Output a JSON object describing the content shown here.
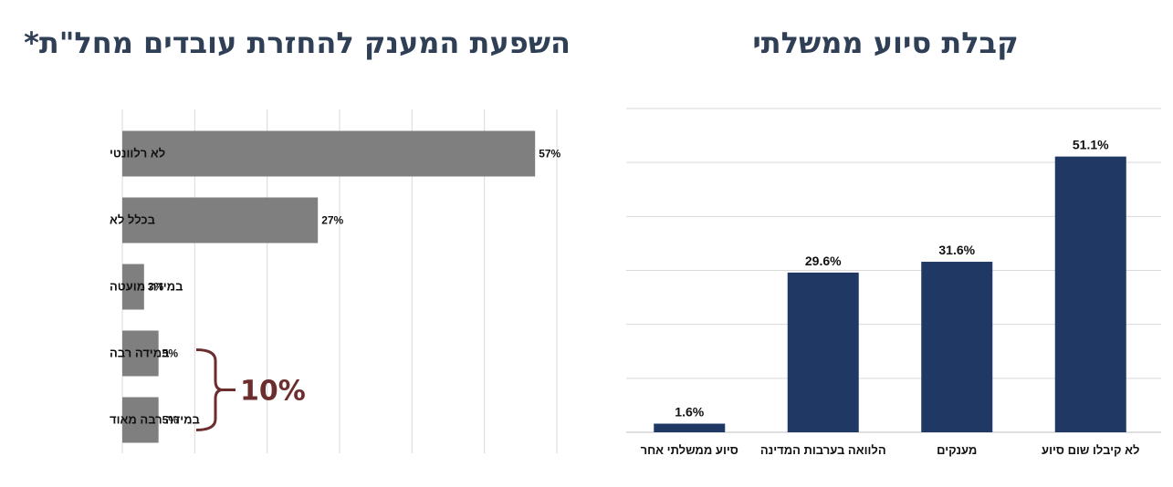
{
  "chart_data": [
    {
      "type": "bar",
      "orientation": "horizontal",
      "title": "השפעת המענק להחזרת עובדים מחל\"ת*",
      "categories": [
        "לא רלוונטי",
        "בכלל לא",
        "במידה מועטה",
        "במידה רבה",
        "במידה רבה מאוד"
      ],
      "values": [
        57,
        27,
        3,
        5,
        5
      ],
      "value_labels": [
        "57%",
        "27%",
        "3%",
        "5%",
        "5%"
      ],
      "xlim": [
        0,
        60
      ],
      "grid": "vertical",
      "bar_color": "#7f7f7f",
      "annotation": {
        "text": "10%",
        "brace_categories": [
          "במידה רבה",
          "במידה רבה מאוד"
        ],
        "color": "#6b2d2d"
      }
    },
    {
      "type": "bar",
      "orientation": "vertical",
      "title": "קבלת סיוע ממשלתי",
      "categories": [
        "לא קיבלו שום סיוע",
        "מענקים",
        "הלוואה בערבות המדינה",
        "סיוע ממשלתי אחר"
      ],
      "values": [
        51.1,
        31.6,
        29.6,
        1.6
      ],
      "value_labels": [
        "51.1%",
        "31.6%",
        "29.6%",
        "1.6%"
      ],
      "ylim": [
        0,
        60
      ],
      "grid": "horizontal",
      "bar_color": "#203864"
    }
  ]
}
